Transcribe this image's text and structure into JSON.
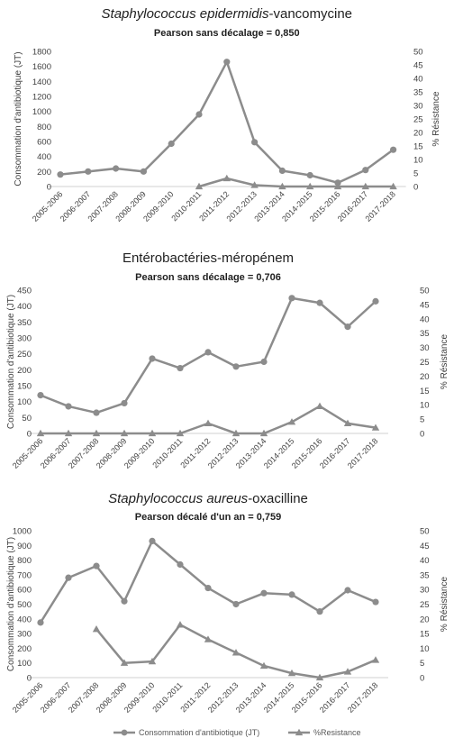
{
  "chart_data": [
    {
      "type": "line",
      "title_italic": "Staphylococcus epidermidis",
      "title_rest": "-vancomycine",
      "subtitle": "Pearson sans décalage = 0,850",
      "categories": [
        "2005-2006",
        "2006-2007",
        "2007-2008",
        "2008-2009",
        "2009-2010",
        "2010-2011",
        "2011-2012",
        "2012-2013",
        "2013-2014",
        "2014-2015",
        "2015-2016",
        "2016-2017",
        "2017-2018"
      ],
      "ylabel": "Consommation d'antibiotique (JT)",
      "y2label": "% Résistance",
      "ylim": [
        0,
        1800
      ],
      "yticks": [
        "0",
        "200",
        "400",
        "600",
        "800",
        "1000",
        "1200",
        "1400",
        "1600",
        "1800"
      ],
      "y2lim": [
        0,
        50
      ],
      "y2ticks": [
        "0",
        "5",
        "10",
        "15",
        "20",
        "25",
        "30",
        "35",
        "40",
        "45",
        "50"
      ],
      "series": [
        {
          "name": "Consommation d'antibiotique (JT)",
          "axis": "left",
          "marker": "circle",
          "values": [
            160,
            200,
            240,
            200,
            570,
            960,
            1660,
            590,
            210,
            150,
            50,
            220,
            490
          ]
        },
        {
          "name": "%Resistance",
          "axis": "right",
          "marker": "triangle",
          "values": [
            null,
            null,
            null,
            null,
            null,
            0,
            3,
            0.5,
            0,
            0,
            0,
            0,
            0
          ]
        }
      ]
    },
    {
      "type": "line",
      "title_italic": "",
      "title_rest": "Entérobactéries-méropénem",
      "subtitle": "Pearson sans décalage = 0,706",
      "categories": [
        "2005-2006",
        "2006-2007",
        "2007-2008",
        "2008-2009",
        "2009-2010",
        "2010-2011",
        "2011-2012",
        "2012-2013",
        "2013-2014",
        "2014-2015",
        "2015-2016",
        "2016-2017",
        "2017-2018"
      ],
      "ylabel": "Consommation d'antibiotique (JT)",
      "y2label": "% Résistance",
      "ylim": [
        0,
        450
      ],
      "yticks": [
        "0",
        "50",
        "100",
        "150",
        "200",
        "250",
        "300",
        "350",
        "400",
        "450"
      ],
      "y2lim": [
        0,
        50
      ],
      "y2ticks": [
        "0",
        "5",
        "10",
        "15",
        "20",
        "25",
        "30",
        "35",
        "40",
        "45",
        "50"
      ],
      "series": [
        {
          "name": "Consommation d'antibiotique (JT)",
          "axis": "left",
          "marker": "circle",
          "values": [
            120,
            85,
            65,
            95,
            235,
            205,
            255,
            210,
            225,
            425,
            410,
            335,
            415
          ]
        },
        {
          "name": "%Resistance",
          "axis": "right",
          "marker": "triangle",
          "values": [
            0,
            0,
            0,
            0,
            0,
            0,
            3.5,
            0,
            0,
            4,
            9.5,
            3.5,
            2
          ]
        }
      ]
    },
    {
      "type": "line",
      "title_italic": "Staphylococcus aureus",
      "title_rest": "-oxacilline",
      "subtitle": "Pearson décalé d'un an = 0,759",
      "categories": [
        "2005-2006",
        "2006-2007",
        "2007-2008",
        "2008-2009",
        "2009-2010",
        "2010-2011",
        "2011-2012",
        "2012-2013",
        "2013-2014",
        "2014-2015",
        "2015-2016",
        "2016-2017",
        "2017-2018"
      ],
      "ylabel": "Consommation d'antibiotique (JT)",
      "y2label": "% Résistance",
      "ylim": [
        0,
        1000
      ],
      "yticks": [
        "0",
        "100",
        "200",
        "300",
        "400",
        "500",
        "600",
        "700",
        "800",
        "900",
        "1000"
      ],
      "y2lim": [
        0,
        50
      ],
      "y2ticks": [
        "0",
        "5",
        "10",
        "15",
        "20",
        "25",
        "30",
        "35",
        "40",
        "45",
        "50"
      ],
      "series": [
        {
          "name": "Consommation d'antibiotique (JT)",
          "axis": "left",
          "marker": "circle",
          "values": [
            375,
            680,
            760,
            520,
            930,
            770,
            610,
            500,
            575,
            565,
            450,
            595,
            515
          ]
        },
        {
          "name": "%Resistance",
          "axis": "right",
          "marker": "triangle",
          "values": [
            null,
            null,
            16.5,
            5,
            5.5,
            18,
            13,
            8.5,
            4,
            1.5,
            0,
            2,
            6
          ]
        }
      ]
    }
  ],
  "legend": {
    "items": [
      {
        "label": "Consommation d'antibiotique (JT)",
        "marker": "circle"
      },
      {
        "label": "%Resistance",
        "marker": "triangle"
      }
    ]
  },
  "colors": {
    "line": "#8c8c8c",
    "grid": "#d9d9d9",
    "text": "#404040"
  }
}
